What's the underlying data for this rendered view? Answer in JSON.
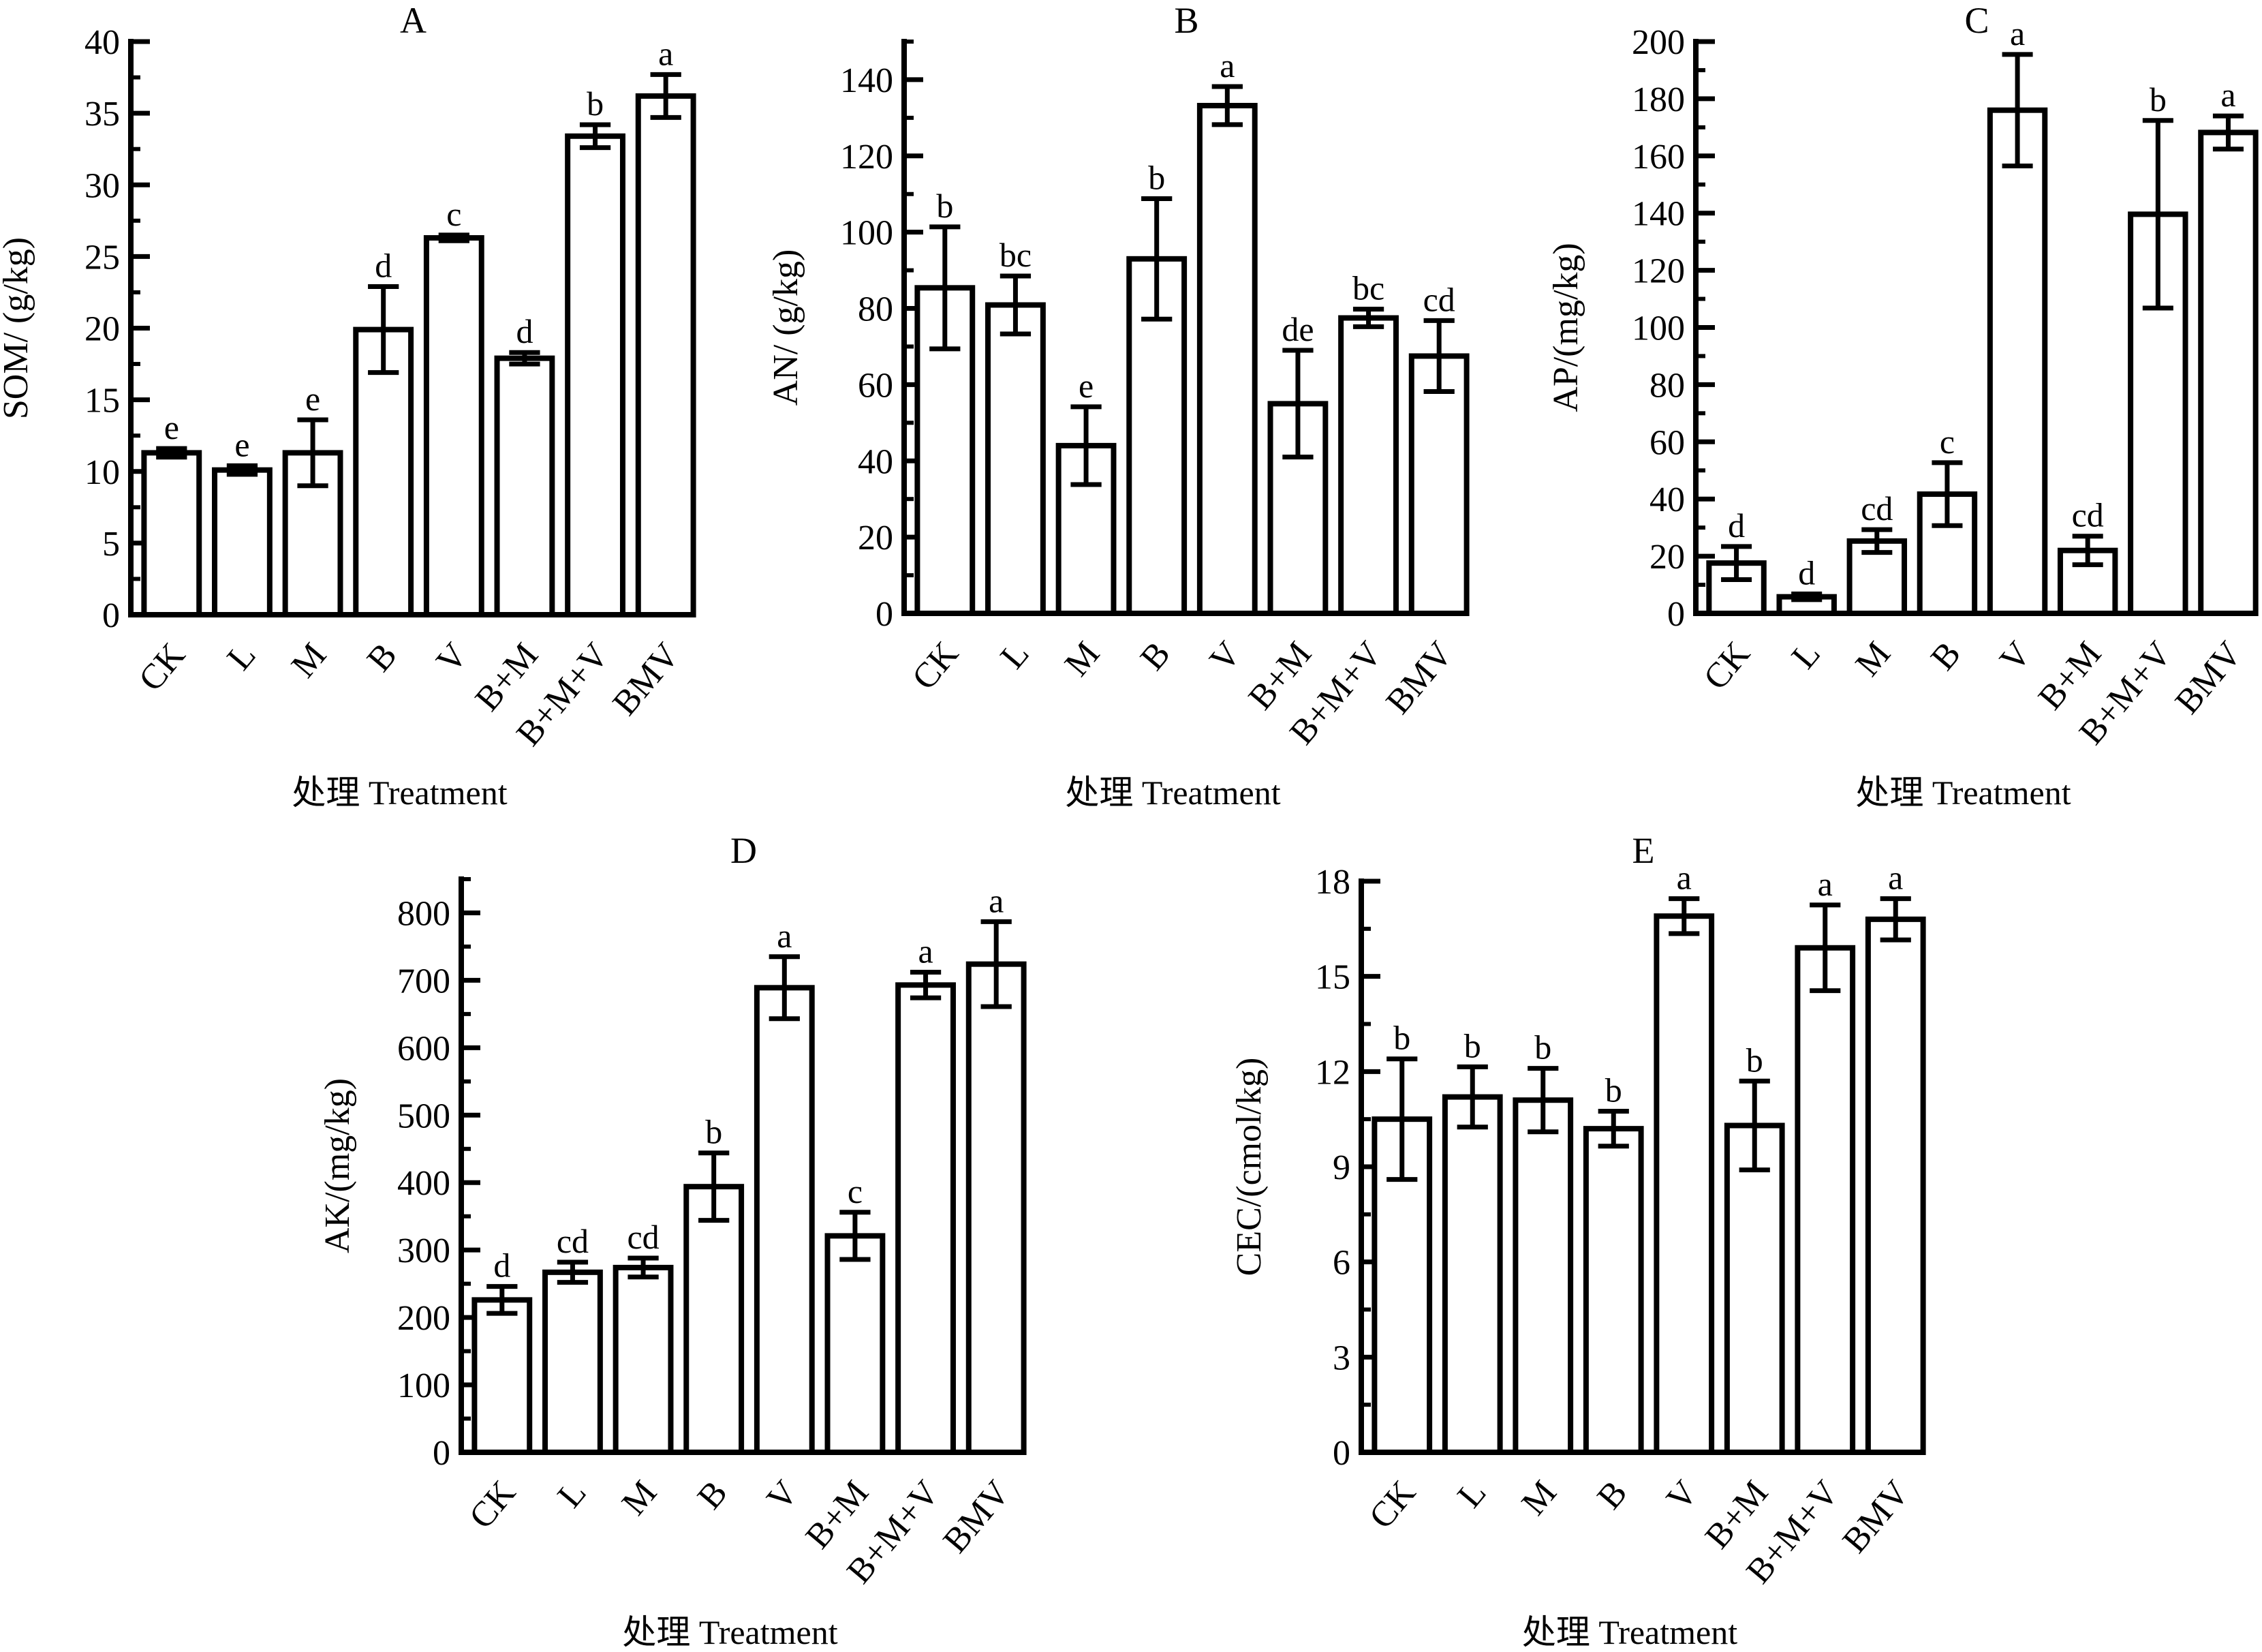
{
  "figure": {
    "x_axis_title": "处理 Treatment"
  },
  "chart_data": [
    {
      "id": "A",
      "type": "bar",
      "title": "A",
      "xlabel": "处理 Treatment",
      "ylabel": "SOM/ (g/kg)",
      "categories": [
        "CK",
        "L",
        "M",
        "B",
        "V",
        "B+M",
        "B+M+V",
        "BMV"
      ],
      "values": [
        11.3,
        10.1,
        11.3,
        19.9,
        26.3,
        17.9,
        33.4,
        36.2
      ],
      "errors": [
        0.3,
        0.3,
        2.3,
        3.0,
        0.2,
        0.4,
        0.8,
        1.5
      ],
      "significance": [
        "e",
        "e",
        "e",
        "d",
        "c",
        "d",
        "b",
        "a"
      ],
      "ylim": [
        0,
        40
      ],
      "yticks": [
        0,
        5,
        10,
        15,
        20,
        25,
        30,
        35,
        40
      ],
      "grid": false,
      "legend": "none"
    },
    {
      "id": "B",
      "type": "bar",
      "title": "B",
      "xlabel": "处理 Treatment",
      "ylabel": "AN/ (g/kg)",
      "categories": [
        "CK",
        "L",
        "M",
        "B",
        "V",
        "B+M",
        "B+M+V",
        "BMV"
      ],
      "values": [
        85.4,
        80.9,
        44.0,
        93.0,
        133.2,
        55.0,
        77.5,
        67.5
      ],
      "errors": [
        16.0,
        7.6,
        10.2,
        15.8,
        5.0,
        14.0,
        2.3,
        9.3
      ],
      "significance": [
        "b",
        "bc",
        "e",
        "b",
        "a",
        "de",
        "bc",
        "cd"
      ],
      "ylim": [
        0,
        150
      ],
      "yticks": [
        0,
        20,
        40,
        60,
        80,
        100,
        120,
        140
      ],
      "grid": false,
      "legend": "none"
    },
    {
      "id": "C",
      "type": "bar",
      "title": "C",
      "xlabel": "处理 Treatment",
      "ylabel": "AP/(mg/kg)",
      "categories": [
        "CK",
        "L",
        "M",
        "B",
        "V",
        "B+M",
        "B+M+V",
        "BMV"
      ],
      "values": [
        17.6,
        5.8,
        25.3,
        41.7,
        176.0,
        22.0,
        139.6,
        168.2
      ],
      "errors": [
        5.8,
        1.0,
        4.0,
        11.0,
        19.5,
        5.0,
        32.8,
        5.8
      ],
      "significance": [
        "d",
        "d",
        "cd",
        "c",
        "a",
        "cd",
        "b",
        "a"
      ],
      "ylim": [
        0,
        200
      ],
      "yticks": [
        0,
        20,
        40,
        60,
        80,
        100,
        120,
        140,
        160,
        180,
        200
      ],
      "grid": false,
      "legend": "none"
    },
    {
      "id": "D",
      "type": "bar",
      "title": "D",
      "xlabel": "处理 Treatment",
      "ylabel": "AK/(mg/kg)",
      "categories": [
        "CK",
        "L",
        "M",
        "B",
        "V",
        "B+M",
        "B+M+V",
        "BMV"
      ],
      "values": [
        226,
        267,
        274,
        394,
        689,
        321,
        693,
        724
      ],
      "errors": [
        20,
        15,
        14,
        50,
        46,
        35,
        19,
        63
      ],
      "significance": [
        "d",
        "cd",
        "cd",
        "b",
        "a",
        "c",
        "a",
        "a"
      ],
      "ylim": [
        0,
        850
      ],
      "yticks": [
        0,
        100,
        200,
        300,
        400,
        500,
        600,
        700,
        800
      ],
      "grid": false,
      "legend": "none"
    },
    {
      "id": "E",
      "type": "bar",
      "title": "E",
      "xlabel": "处理 Treatment",
      "ylabel": "CEC/(cmol/kg)",
      "categories": [
        "CK",
        "L",
        "M",
        "B",
        "V",
        "B+M",
        "B+M+V",
        "BMV"
      ],
      "values": [
        10.5,
        11.2,
        11.1,
        10.2,
        16.9,
        10.3,
        15.9,
        16.8
      ],
      "errors": [
        1.9,
        0.95,
        1.0,
        0.55,
        0.55,
        1.4,
        1.35,
        0.65
      ],
      "significance": [
        "b",
        "b",
        "b",
        "b",
        "a",
        "b",
        "a",
        "a"
      ],
      "ylim": [
        0,
        18
      ],
      "yticks": [
        0,
        3,
        6,
        9,
        12,
        15,
        18
      ],
      "grid": false,
      "legend": "none"
    }
  ]
}
